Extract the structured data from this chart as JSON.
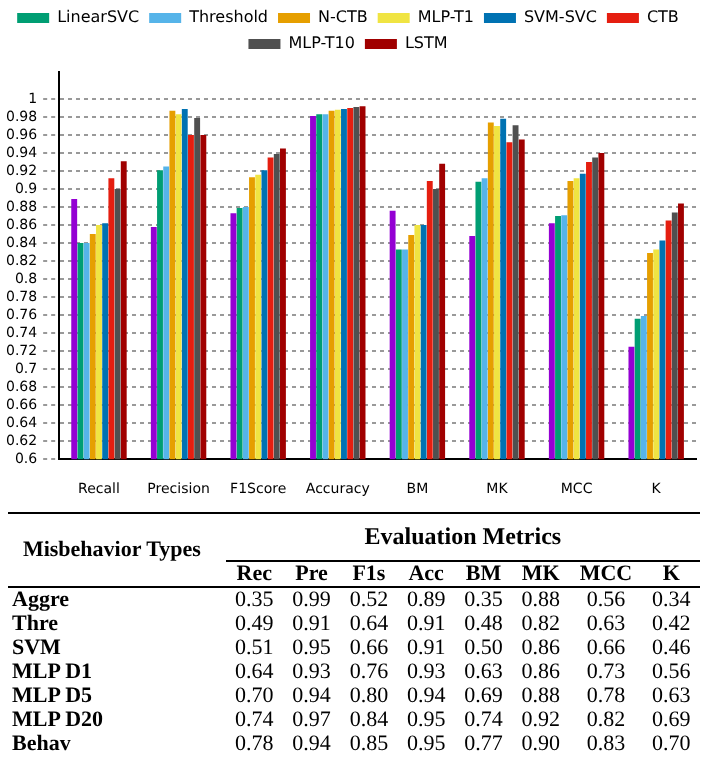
{
  "chart_data": [
    {
      "type": "bar",
      "categories": [
        "Recall",
        "Precision",
        "F1Score",
        "Accuracy",
        "BM",
        "MK",
        "MCC",
        "K"
      ],
      "ylim": [
        0.6,
        1.03
      ],
      "yticks": [
        0.6,
        0.62,
        0.64,
        0.66,
        0.68,
        0.7,
        0.72,
        0.74,
        0.76,
        0.78,
        0.8,
        0.82,
        0.84,
        0.86,
        0.88,
        0.9,
        0.92,
        0.94,
        0.96,
        0.98,
        1
      ],
      "grid": "y",
      "legend": "top",
      "series": [
        {
          "color": "#9400d3",
          "values": [
            0.889,
            0.858,
            0.873,
            0.981,
            0.876,
            0.848,
            0.862,
            0.725
          ]
        },
        {
          "name": "LinearSVC",
          "color": "#009e73",
          "values": [
            0.84,
            0.921,
            0.879,
            0.983,
            0.833,
            0.908,
            0.87,
            0.756
          ]
        },
        {
          "name": "Threshold",
          "color": "#56b4e9",
          "values": [
            0.84,
            0.925,
            0.88,
            0.983,
            0.833,
            0.912,
            0.871,
            0.759
          ]
        },
        {
          "name": "N-CTB",
          "color": "#e69f00",
          "values": [
            0.85,
            0.987,
            0.913,
            0.987,
            0.849,
            0.974,
            0.909,
            0.829
          ]
        },
        {
          "name": "MLP-T1",
          "color": "#f0e442",
          "values": [
            0.86,
            0.983,
            0.916,
            0.988,
            0.86,
            0.97,
            0.912,
            0.833
          ]
        },
        {
          "name": "SVM-SVC",
          "color": "#0072b2",
          "values": [
            0.862,
            0.989,
            0.921,
            0.989,
            0.86,
            0.978,
            0.917,
            0.843
          ]
        },
        {
          "name": "CTB",
          "color": "#e51e10",
          "values": [
            0.912,
            0.96,
            0.935,
            0.99,
            0.909,
            0.952,
            0.93,
            0.865
          ]
        },
        {
          "name": "MLP-T10",
          "color": "#505050",
          "values": [
            0.9,
            0.979,
            0.939,
            0.991,
            0.9,
            0.971,
            0.935,
            0.874
          ]
        },
        {
          "name": "LSTM",
          "color": "#a00000",
          "values": [
            0.931,
            0.96,
            0.945,
            0.992,
            0.928,
            0.955,
            0.94,
            0.884
          ]
        }
      ]
    },
    {
      "type": "other",
      "title": "Evaluation Metrics",
      "ylabel": "Misbehavior Types",
      "categories": [
        "Rec",
        "Pre",
        "F1s",
        "Acc",
        "BM",
        "MK",
        "MCC",
        "K"
      ],
      "y_categories": [
        "Aggre",
        "Thre",
        "SVM",
        "MLP D1",
        "MLP D5",
        "MLP D20",
        "Behav"
      ],
      "cells": [
        [
          "0.35",
          "0.99",
          "0.52",
          "0.89",
          "0.35",
          "0.88",
          "0.56",
          "0.34"
        ],
        [
          "0.49",
          "0.91",
          "0.64",
          "0.91",
          "0.48",
          "0.82",
          "0.63",
          "0.42"
        ],
        [
          "0.51",
          "0.95",
          "0.66",
          "0.91",
          "0.50",
          "0.86",
          "0.66",
          "0.46"
        ],
        [
          "0.64",
          "0.93",
          "0.76",
          "0.93",
          "0.63",
          "0.86",
          "0.73",
          "0.56"
        ],
        [
          "0.70",
          "0.94",
          "0.80",
          "0.94",
          "0.69",
          "0.88",
          "0.78",
          "0.63"
        ],
        [
          "0.74",
          "0.97",
          "0.84",
          "0.95",
          "0.74",
          "0.92",
          "0.82",
          "0.69"
        ],
        [
          "0.78",
          "0.94",
          "0.85",
          "0.95",
          "0.77",
          "0.90",
          "0.83",
          "0.70"
        ]
      ]
    }
  ]
}
